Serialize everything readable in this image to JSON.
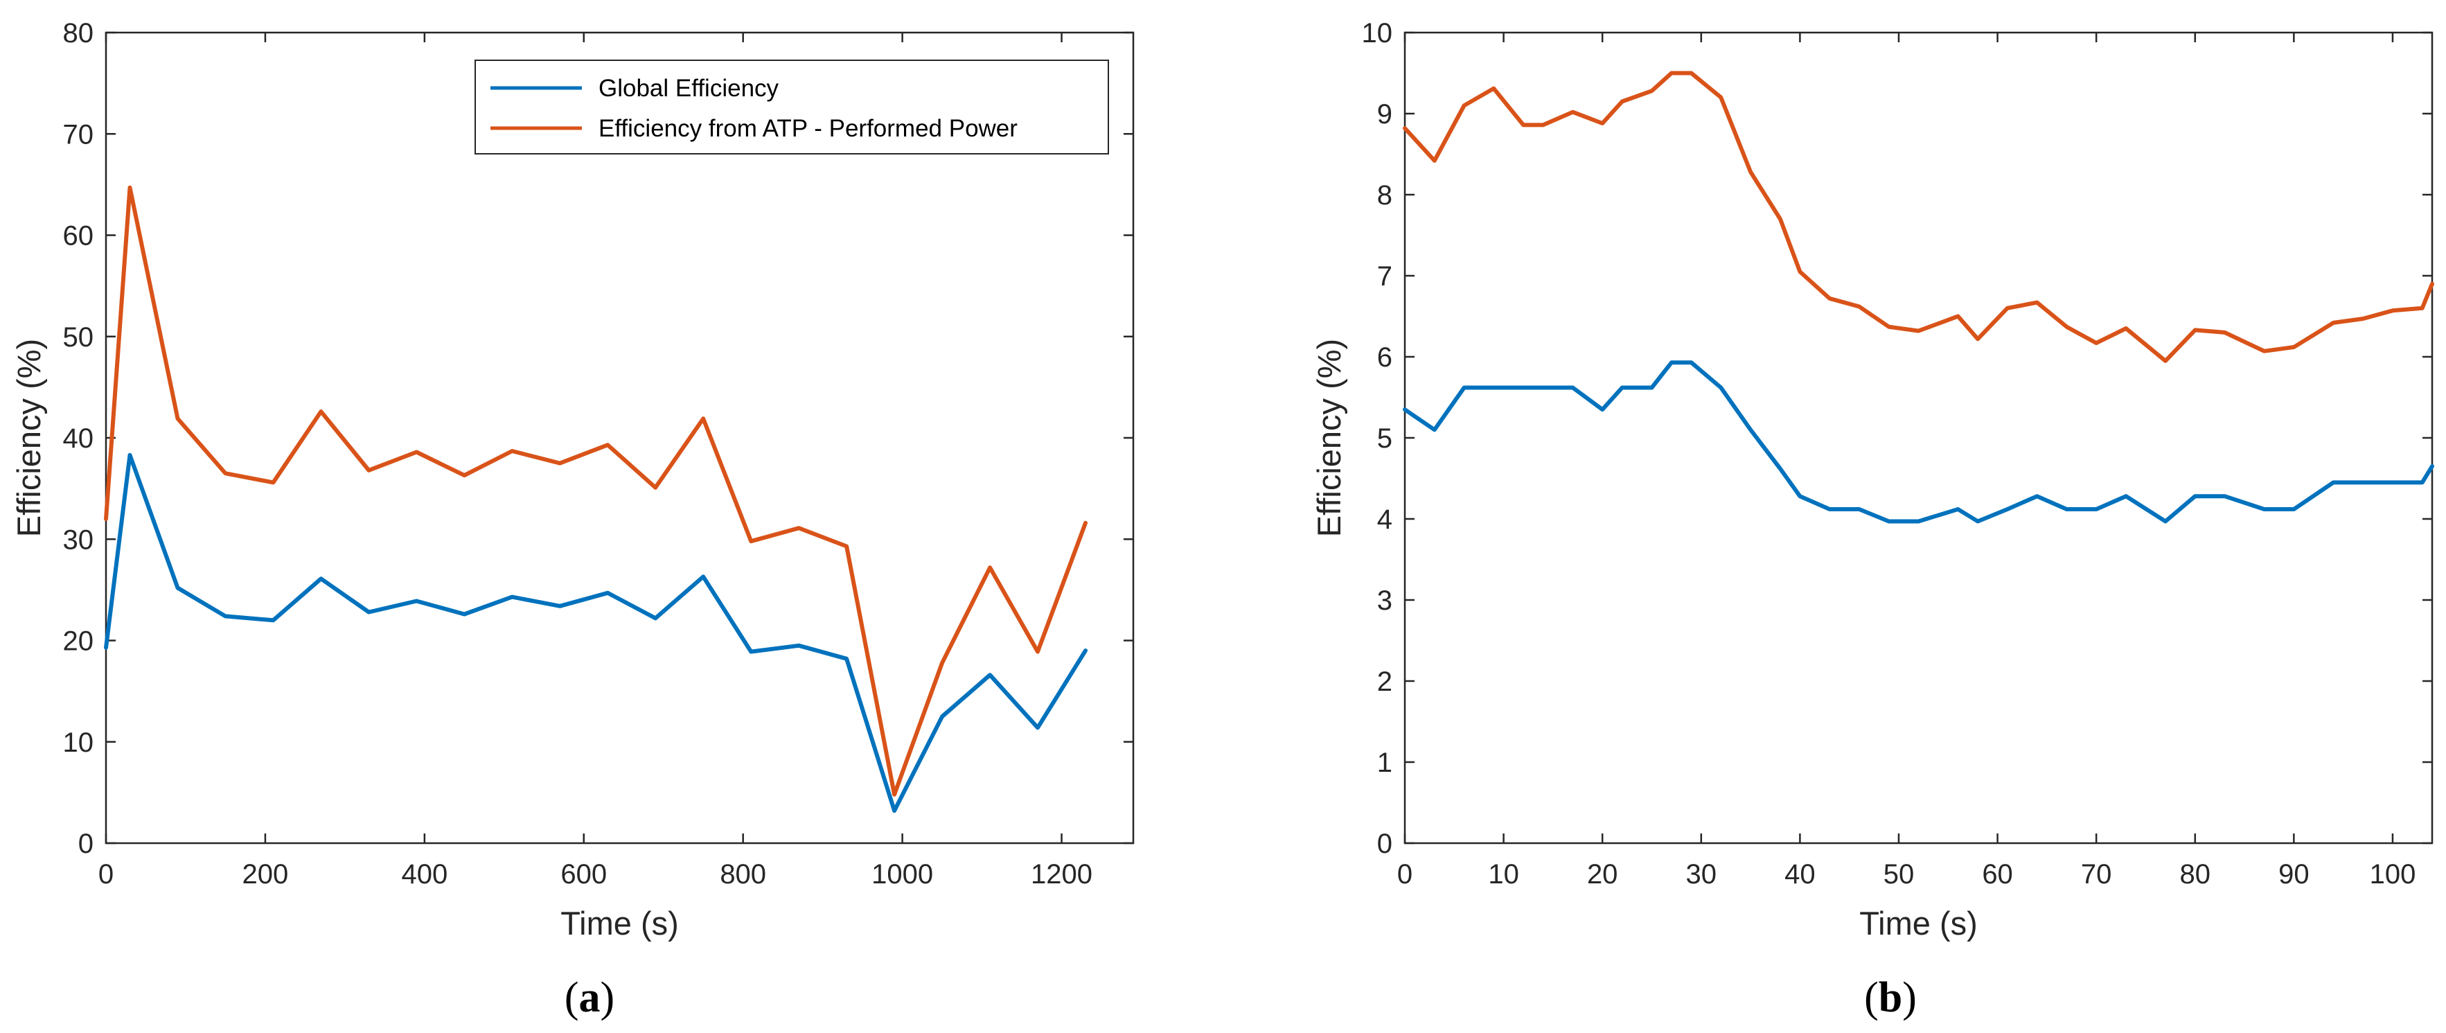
{
  "colors": {
    "global": "#0072bd",
    "atp": "#d95319",
    "axis": "#262626"
  },
  "chart_data": [
    {
      "type": "line",
      "panel_label": "a",
      "xlabel": "Time (s)",
      "ylabel": "Efficiency (%)",
      "xlim": [
        0,
        1290
      ],
      "ylim": [
        0,
        80
      ],
      "xticks": [
        0,
        200,
        400,
        600,
        800,
        1000,
        1200
      ],
      "yticks": [
        0,
        10,
        20,
        30,
        40,
        50,
        60,
        70,
        80
      ],
      "grid": false,
      "legend_position": "top-right",
      "series": [
        {
          "name": "Global Efficiency",
          "color": "#0072bd",
          "x": [
            0,
            30,
            90,
            150,
            210,
            270,
            330,
            390,
            450,
            510,
            570,
            630,
            690,
            750,
            810,
            870,
            930,
            990,
            1050,
            1110,
            1170,
            1230
          ],
          "y": [
            19.3,
            38.3,
            25.2,
            22.4,
            22.0,
            26.1,
            22.8,
            23.9,
            22.6,
            24.3,
            23.4,
            24.7,
            22.2,
            26.3,
            18.9,
            19.5,
            18.2,
            3.2,
            12.5,
            16.6,
            11.4,
            19.0
          ]
        },
        {
          "name": "Efficiency from ATP - Performed Power",
          "color": "#d95319",
          "x": [
            0,
            30,
            90,
            150,
            210,
            270,
            330,
            390,
            450,
            510,
            570,
            630,
            690,
            750,
            810,
            870,
            930,
            990,
            1050,
            1110,
            1170,
            1230
          ],
          "y": [
            32.0,
            64.7,
            41.9,
            36.5,
            35.6,
            42.6,
            36.8,
            38.6,
            36.3,
            38.7,
            37.5,
            39.3,
            35.1,
            41.9,
            29.8,
            31.1,
            29.3,
            4.8,
            17.8,
            27.2,
            18.9,
            31.6
          ]
        }
      ]
    },
    {
      "type": "line",
      "panel_label": "b",
      "xlabel": "Time (s)",
      "ylabel": "Efficiency (%)",
      "xlim": [
        0,
        104
      ],
      "ylim": [
        0,
        10
      ],
      "xticks": [
        0,
        10,
        20,
        30,
        40,
        50,
        60,
        70,
        80,
        90,
        100
      ],
      "yticks": [
        0,
        1,
        2,
        3,
        4,
        5,
        6,
        7,
        8,
        9,
        10
      ],
      "grid": false,
      "series": [
        {
          "color": "#0072bd",
          "x": [
            0,
            3,
            6,
            9,
            12,
            14,
            17,
            20,
            22,
            25,
            27,
            29,
            32,
            35,
            38,
            40,
            43,
            46,
            49,
            52,
            56,
            58,
            61,
            64,
            67,
            70,
            73,
            77,
            80,
            83,
            87,
            90,
            94,
            97,
            100,
            103,
            104
          ],
          "y": [
            5.35,
            5.1,
            5.62,
            5.62,
            5.62,
            5.62,
            5.62,
            5.35,
            5.62,
            5.62,
            5.93,
            5.93,
            5.62,
            5.1,
            4.62,
            4.28,
            4.12,
            4.12,
            3.97,
            3.97,
            4.12,
            3.97,
            4.12,
            4.28,
            4.12,
            4.12,
            4.28,
            3.97,
            4.28,
            4.28,
            4.12,
            4.12,
            4.45,
            4.45,
            4.45,
            4.45,
            4.65
          ]
        },
        {
          "color": "#d95319",
          "x": [
            0,
            3,
            6,
            9,
            12,
            14,
            17,
            20,
            22,
            25,
            27,
            29,
            32,
            35,
            38,
            40,
            43,
            46,
            49,
            52,
            56,
            58,
            61,
            64,
            67,
            70,
            73,
            77,
            80,
            83,
            87,
            90,
            94,
            97,
            100,
            103,
            104
          ],
          "y": [
            8.82,
            8.42,
            9.1,
            9.31,
            8.86,
            8.86,
            9.02,
            8.88,
            9.15,
            9.28,
            9.5,
            9.5,
            9.2,
            8.28,
            7.7,
            7.05,
            6.72,
            6.62,
            6.37,
            6.32,
            6.5,
            6.22,
            6.6,
            6.67,
            6.37,
            6.17,
            6.35,
            5.95,
            6.33,
            6.3,
            6.07,
            6.12,
            6.42,
            6.47,
            6.57,
            6.6,
            6.9
          ]
        }
      ]
    }
  ]
}
